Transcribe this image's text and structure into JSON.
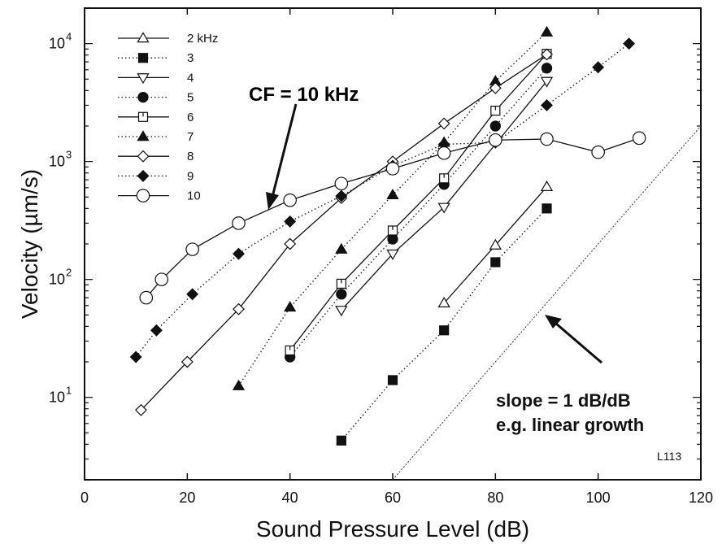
{
  "chart_data": {
    "type": "line",
    "xlabel": "Sound Pressure Level (dB)",
    "ylabel": "Velocity (µm/s)",
    "x_ticks": [
      0,
      20,
      40,
      60,
      80,
      100,
      120
    ],
    "x_tick_labels": [
      "0",
      "20",
      "40",
      "60",
      "80",
      "100",
      "120"
    ],
    "xlim": [
      0,
      120
    ],
    "y_scale": "log",
    "ylim": [
      2,
      20000
    ],
    "y_ticks": [
      10,
      100,
      1000,
      10000
    ],
    "y_tick_base": "10",
    "y_tick_exponents": [
      "1",
      "2",
      "3",
      "4"
    ],
    "annotations": {
      "cf": "CF = 10 kHz",
      "cf_color": "#9b1b30",
      "slope_line1": "slope = 1 dB/dB",
      "slope_line2": "e.g. linear growth",
      "figure_id": "L113"
    },
    "reference_line": {
      "x": [
        60,
        120
      ],
      "y": [
        2,
        2000
      ]
    },
    "series": [
      {
        "name": "2 kHz",
        "marker": "triangle-up",
        "fill": "open",
        "line": "solid",
        "x": [
          70,
          80,
          90
        ],
        "y": [
          63,
          195,
          610
        ]
      },
      {
        "name": "3",
        "marker": "square",
        "fill": "filled",
        "line": "dotted",
        "x": [
          50,
          60,
          70,
          80,
          90
        ],
        "y": [
          4.3,
          14,
          37,
          140,
          400
        ]
      },
      {
        "name": "4",
        "marker": "triangle-down",
        "fill": "open",
        "line": "solid",
        "x": [
          50,
          60,
          70,
          90
        ],
        "y": [
          55,
          165,
          410,
          4800
        ]
      },
      {
        "name": "5",
        "marker": "circle",
        "fill": "filled",
        "line": "dotted",
        "x": [
          40,
          50,
          60,
          70,
          80,
          90
        ],
        "y": [
          22,
          75,
          220,
          640,
          2000,
          6200
        ]
      },
      {
        "name": "6",
        "marker": "square-tick",
        "fill": "open",
        "line": "solid",
        "x": [
          40,
          50,
          60,
          70,
          80,
          90
        ],
        "y": [
          25,
          92,
          260,
          720,
          2700,
          8200
        ]
      },
      {
        "name": "7",
        "marker": "triangle-up",
        "fill": "filled",
        "line": "dotted",
        "x": [
          30,
          40,
          50,
          60,
          70,
          80,
          90
        ],
        "y": [
          12.5,
          58,
          180,
          520,
          1450,
          4800,
          12500
        ]
      },
      {
        "name": "8",
        "marker": "diamond",
        "fill": "open",
        "line": "solid",
        "x": [
          11,
          20,
          30,
          40,
          50,
          60,
          70,
          80,
          90
        ],
        "y": [
          7.8,
          20,
          56,
          200,
          490,
          1000,
          2100,
          4200,
          8100
        ]
      },
      {
        "name": "9",
        "marker": "diamond",
        "fill": "filled",
        "line": "dotted",
        "x": [
          10,
          14,
          21,
          30,
          40,
          50,
          60,
          70,
          80,
          90,
          100,
          106
        ],
        "y": [
          22,
          37,
          75,
          165,
          310,
          510,
          920,
          1400,
          1450,
          3000,
          6300,
          10000
        ]
      },
      {
        "name": "10",
        "marker": "circle",
        "fill": "open",
        "line": "solid",
        "x": [
          12,
          15,
          21,
          30,
          40,
          50,
          60,
          70,
          80,
          90,
          100,
          108
        ],
        "y": [
          70,
          100,
          180,
          300,
          470,
          650,
          870,
          1180,
          1520,
          1550,
          1200,
          1580
        ]
      }
    ]
  }
}
